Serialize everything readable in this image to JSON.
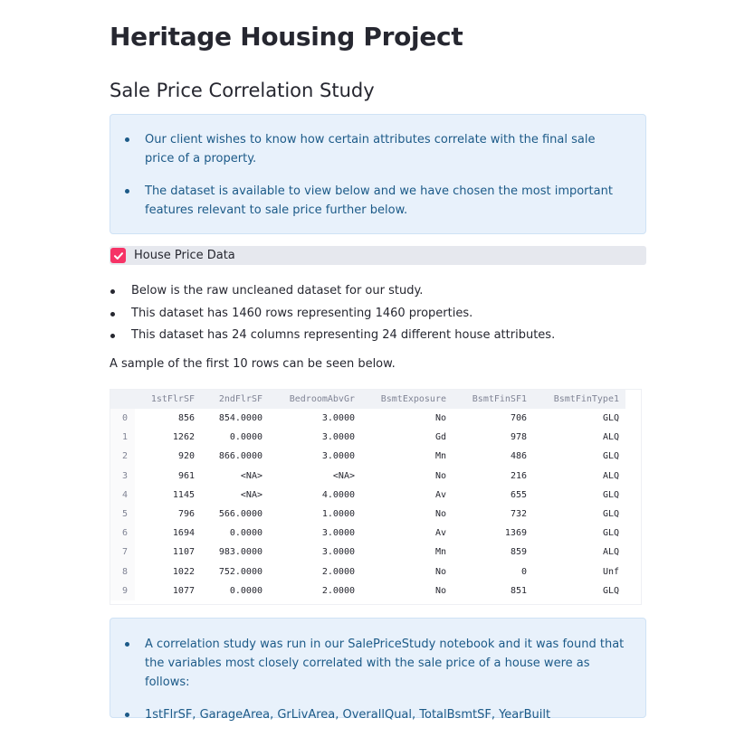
{
  "page": {
    "title": "Heritage Housing Project",
    "subtitle": "Sale Price Correlation Study"
  },
  "info_top": {
    "items": [
      "Our client wishes to know how certain attributes correlate with the final sale price of a property.",
      "The dataset is available to view below and we have chosen the most important features relevant to sale price further below."
    ]
  },
  "checkbox": {
    "label": "House Price Data",
    "checked": true,
    "accent_color": "#f63366"
  },
  "dataset_notes": {
    "items": [
      "Below is the raw uncleaned dataset for our study.",
      "This dataset has 1460 rows representing 1460 properties.",
      "This dataset has 24 columns representing 24 different house attributes."
    ]
  },
  "sample_text": "A sample of the first 10 rows can be seen below.",
  "table": {
    "columns": [
      "1stFlrSF",
      "2ndFlrSF",
      "BedroomAbvGr",
      "BsmtExposure",
      "BsmtFinSF1",
      "BsmtFinType1"
    ],
    "rows": [
      {
        "index": "0",
        "cells": [
          "856",
          "854.0000",
          "3.0000",
          "No",
          "706",
          "GLQ"
        ]
      },
      {
        "index": "1",
        "cells": [
          "1262",
          "0.0000",
          "3.0000",
          "Gd",
          "978",
          "ALQ"
        ]
      },
      {
        "index": "2",
        "cells": [
          "920",
          "866.0000",
          "3.0000",
          "Mn",
          "486",
          "GLQ"
        ]
      },
      {
        "index": "3",
        "cells": [
          "961",
          "<NA>",
          "<NA>",
          "No",
          "216",
          "ALQ"
        ]
      },
      {
        "index": "4",
        "cells": [
          "1145",
          "<NA>",
          "4.0000",
          "Av",
          "655",
          "GLQ"
        ]
      },
      {
        "index": "5",
        "cells": [
          "796",
          "566.0000",
          "1.0000",
          "No",
          "732",
          "GLQ"
        ]
      },
      {
        "index": "6",
        "cells": [
          "1694",
          "0.0000",
          "3.0000",
          "Av",
          "1369",
          "GLQ"
        ]
      },
      {
        "index": "7",
        "cells": [
          "1107",
          "983.0000",
          "3.0000",
          "Mn",
          "859",
          "ALQ"
        ]
      },
      {
        "index": "8",
        "cells": [
          "1022",
          "752.0000",
          "2.0000",
          "No",
          "0",
          "Unf"
        ]
      },
      {
        "index": "9",
        "cells": [
          "1077",
          "0.0000",
          "2.0000",
          "No",
          "851",
          "GLQ"
        ]
      }
    ]
  },
  "info_bottom": {
    "items": [
      "A correlation study was run in our SalePriceStudy notebook and it was found that the variables most closely correlated with the sale price of a house were as follows:",
      "1stFlrSF, GarageArea, GrLivArea, OverallQual, TotalBsmtSF, YearBuilt"
    ]
  }
}
